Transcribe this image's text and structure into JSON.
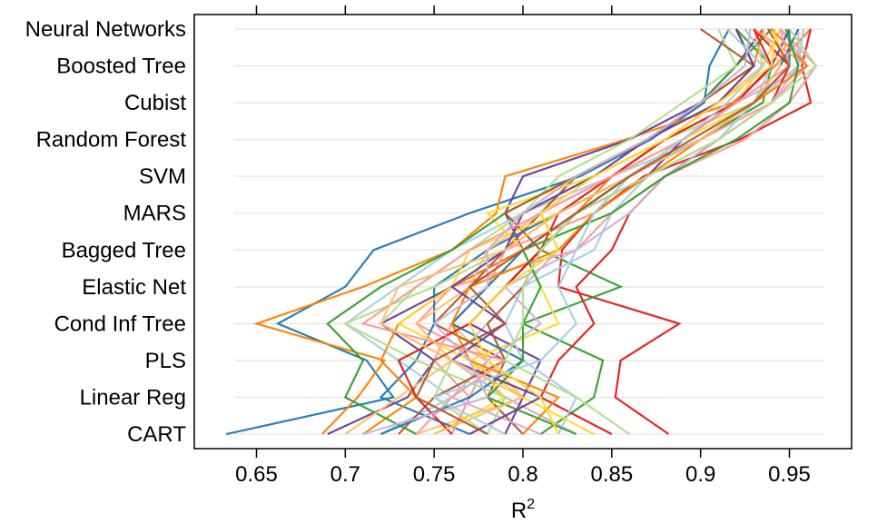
{
  "chart_data": {
    "type": "line",
    "description_type": "parallel coordinate plot of resampled R2 per model",
    "categories": [
      "CART",
      "Linear Reg",
      "PLS",
      "Cond Inf Tree",
      "Elastic Net",
      "Bagged Tree",
      "MARS",
      "SVM",
      "Random Forest",
      "Cubist",
      "Boosted Tree",
      "Neural Networks"
    ],
    "xlabel": "R",
    "xlabel_superscript": "2",
    "xlim": [
      0.615,
      0.985
    ],
    "xticks": [
      0.65,
      0.7,
      0.75,
      0.8,
      0.85,
      0.9,
      0.95
    ],
    "xtick_labels": [
      "0.65",
      "0.7",
      "0.75",
      "0.8",
      "0.85",
      "0.9",
      "0.95"
    ],
    "grid": true,
    "colors": {
      "palette": [
        "#1f78b4",
        "#ff7f00",
        "#e31a1c",
        "#33a02c",
        "#6a3d9a",
        "#fb9a99",
        "#a6cee3",
        "#fdbf6f",
        "#b2df8a",
        "#cab2d6",
        "#b15928",
        "#ffd92f"
      ],
      "grid": "#e8e8e8",
      "frame": "#000000"
    },
    "series": [
      {
        "values": [
          0.633,
          0.727,
          0.712,
          0.662,
          0.7,
          0.716,
          0.77,
          0.832,
          0.872,
          0.902,
          0.905,
          0.916
        ]
      },
      {
        "values": [
          0.687,
          0.707,
          0.722,
          0.65,
          0.71,
          0.76,
          0.785,
          0.79,
          0.858,
          0.918,
          0.942,
          0.962
        ]
      },
      {
        "values": [
          0.882,
          0.852,
          0.855,
          0.888,
          0.82,
          0.822,
          0.84,
          0.868,
          0.922,
          0.962,
          0.957,
          0.962
        ]
      },
      {
        "values": [
          0.81,
          0.84,
          0.845,
          0.8,
          0.855,
          0.81,
          0.83,
          0.86,
          0.9,
          0.935,
          0.94,
          0.92
        ]
      },
      {
        "values": [
          0.69,
          0.735,
          0.75,
          0.72,
          0.76,
          0.8,
          0.79,
          0.8,
          0.86,
          0.9,
          0.92,
          0.935
        ]
      },
      {
        "values": [
          0.76,
          0.77,
          0.78,
          0.74,
          0.76,
          0.83,
          0.85,
          0.88,
          0.925,
          0.95,
          0.965,
          0.945
        ]
      },
      {
        "values": [
          0.72,
          0.76,
          0.73,
          0.7,
          0.73,
          0.76,
          0.8,
          0.85,
          0.9,
          0.93,
          0.955,
          0.958
        ]
      },
      {
        "values": [
          0.74,
          0.8,
          0.78,
          0.76,
          0.78,
          0.79,
          0.82,
          0.86,
          0.89,
          0.92,
          0.935,
          0.93
        ]
      },
      {
        "values": [
          0.78,
          0.75,
          0.76,
          0.72,
          0.74,
          0.77,
          0.8,
          0.84,
          0.88,
          0.93,
          0.95,
          0.94
        ]
      },
      {
        "values": [
          0.83,
          0.79,
          0.76,
          0.78,
          0.8,
          0.82,
          0.81,
          0.85,
          0.89,
          0.92,
          0.96,
          0.945
        ]
      },
      {
        "values": [
          0.8,
          0.78,
          0.79,
          0.75,
          0.77,
          0.79,
          0.81,
          0.83,
          0.87,
          0.9,
          0.93,
          0.92
        ]
      },
      {
        "values": [
          0.75,
          0.79,
          0.77,
          0.82,
          0.81,
          0.8,
          0.78,
          0.84,
          0.88,
          0.92,
          0.94,
          0.925
        ]
      },
      {
        "values": [
          0.77,
          0.72,
          0.74,
          0.75,
          0.75,
          0.78,
          0.82,
          0.86,
          0.9,
          0.93,
          0.95,
          0.95
        ]
      },
      {
        "values": [
          0.71,
          0.74,
          0.72,
          0.73,
          0.76,
          0.8,
          0.83,
          0.85,
          0.88,
          0.91,
          0.93,
          0.935
        ]
      },
      {
        "values": [
          0.85,
          0.81,
          0.82,
          0.84,
          0.83,
          0.85,
          0.86,
          0.88,
          0.91,
          0.94,
          0.95,
          0.93
        ]
      },
      {
        "values": [
          0.74,
          0.7,
          0.71,
          0.69,
          0.72,
          0.76,
          0.79,
          0.83,
          0.87,
          0.9,
          0.92,
          0.94
        ]
      },
      {
        "values": [
          0.79,
          0.8,
          0.81,
          0.77,
          0.79,
          0.81,
          0.83,
          0.87,
          0.89,
          0.92,
          0.94,
          0.95
        ]
      },
      {
        "values": [
          0.76,
          0.77,
          0.75,
          0.76,
          0.78,
          0.79,
          0.84,
          0.86,
          0.9,
          0.94,
          0.96,
          0.93
        ]
      },
      {
        "values": [
          0.82,
          0.83,
          0.8,
          0.79,
          0.8,
          0.84,
          0.85,
          0.87,
          0.91,
          0.93,
          0.94,
          0.925
        ]
      },
      {
        "values": [
          0.7,
          0.73,
          0.76,
          0.74,
          0.77,
          0.78,
          0.81,
          0.84,
          0.88,
          0.91,
          0.935,
          0.945
        ]
      },
      {
        "values": [
          0.78,
          0.79,
          0.74,
          0.7,
          0.75,
          0.79,
          0.8,
          0.82,
          0.86,
          0.89,
          0.92,
          0.91
        ]
      },
      {
        "values": [
          0.81,
          0.76,
          0.78,
          0.81,
          0.79,
          0.83,
          0.86,
          0.88,
          0.91,
          0.94,
          0.955,
          0.955
        ]
      },
      {
        "values": [
          0.73,
          0.75,
          0.79,
          0.78,
          0.8,
          0.81,
          0.79,
          0.83,
          0.87,
          0.9,
          0.93,
          0.9
        ]
      },
      {
        "values": [
          0.84,
          0.8,
          0.77,
          0.73,
          0.76,
          0.77,
          0.82,
          0.85,
          0.89,
          0.93,
          0.95,
          0.94
        ]
      },
      {
        "values": [
          0.72,
          0.77,
          0.8,
          0.76,
          0.78,
          0.8,
          0.83,
          0.86,
          0.9,
          0.93,
          0.945,
          0.955
        ]
      },
      {
        "values": [
          0.8,
          0.82,
          0.77,
          0.76,
          0.77,
          0.82,
          0.84,
          0.87,
          0.9,
          0.93,
          0.96,
          0.94
        ]
      },
      {
        "values": [
          0.76,
          0.74,
          0.73,
          0.77,
          0.79,
          0.81,
          0.82,
          0.85,
          0.88,
          0.92,
          0.94,
          0.93
        ]
      },
      {
        "values": [
          0.83,
          0.78,
          0.8,
          0.8,
          0.81,
          0.8,
          0.85,
          0.88,
          0.92,
          0.95,
          0.955,
          0.948
        ]
      },
      {
        "values": [
          0.77,
          0.81,
          0.76,
          0.79,
          0.76,
          0.79,
          0.8,
          0.84,
          0.87,
          0.91,
          0.93,
          0.92
        ]
      },
      {
        "values": [
          0.74,
          0.76,
          0.79,
          0.71,
          0.74,
          0.77,
          0.81,
          0.85,
          0.89,
          0.92,
          0.95,
          0.945
        ]
      },
      {
        "values": [
          0.79,
          0.75,
          0.81,
          0.83,
          0.82,
          0.83,
          0.84,
          0.86,
          0.89,
          0.915,
          0.935,
          0.915
        ]
      },
      {
        "values": [
          0.75,
          0.8,
          0.76,
          0.72,
          0.73,
          0.79,
          0.82,
          0.86,
          0.9,
          0.93,
          0.945,
          0.935
        ]
      },
      {
        "values": [
          0.86,
          0.83,
          0.79,
          0.8,
          0.8,
          0.81,
          0.83,
          0.87,
          0.91,
          0.94,
          0.965,
          0.95
        ]
      },
      {
        "values": [
          0.71,
          0.78,
          0.77,
          0.75,
          0.78,
          0.78,
          0.8,
          0.83,
          0.87,
          0.9,
          0.925,
          0.928
        ]
      },
      {
        "values": [
          0.78,
          0.74,
          0.75,
          0.79,
          0.77,
          0.8,
          0.83,
          0.86,
          0.895,
          0.93,
          0.95,
          0.938
        ]
      },
      {
        "values": [
          0.82,
          0.81,
          0.78,
          0.77,
          0.79,
          0.82,
          0.81,
          0.84,
          0.88,
          0.91,
          0.94,
          0.942
        ]
      }
    ]
  }
}
